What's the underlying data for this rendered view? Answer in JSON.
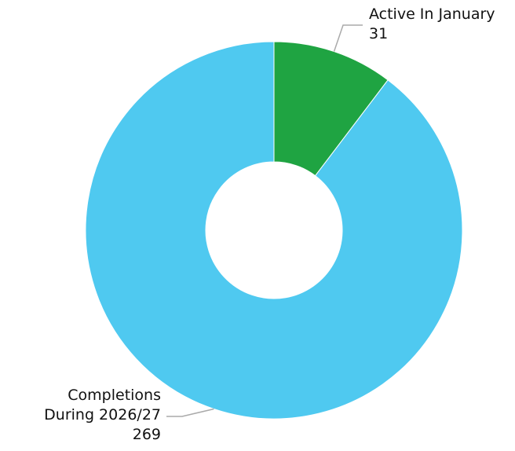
{
  "chart_data": {
    "type": "donut",
    "categories": [
      "Active In January",
      "Completions During 2026/27"
    ],
    "values": [
      31,
      269
    ],
    "colors": [
      "#1fa442",
      "#4fc9f0"
    ]
  }
}
